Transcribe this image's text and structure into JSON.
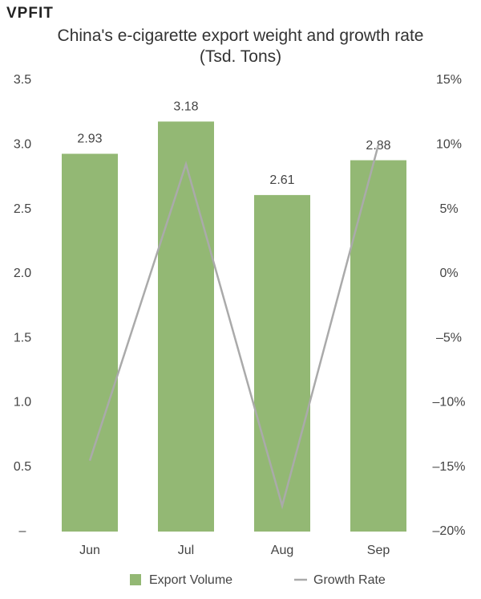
{
  "logo": "VPFIT",
  "chart_data": {
    "type": "bar-line",
    "title": "China's e-cigarette export weight and growth rate (Tsd. Tons)",
    "categories": [
      "Jun",
      "Jul",
      "Aug",
      "Sep"
    ],
    "series": [
      {
        "name": "Export Volume",
        "type": "bar",
        "color": "#93b874",
        "values": [
          2.93,
          3.18,
          2.61,
          2.88
        ]
      },
      {
        "name": "Growth Rate",
        "type": "line",
        "axis": "y2",
        "color": "#aaaaaa",
        "values": [
          -14.5,
          8.5,
          -18,
          10
        ]
      }
    ],
    "ylim": [
      0,
      3.5
    ],
    "yticks": [
      {
        "value": 0,
        "label": "–"
      },
      0.5,
      {
        "value": 1,
        "label": "1.0"
      },
      1.5,
      {
        "value": 2,
        "label": "2.0"
      },
      2.5,
      {
        "value": 3,
        "label": "3.0"
      },
      3.5
    ],
    "y2lim": [
      -20,
      15
    ],
    "y2ticks": [
      {
        "value": -20,
        "label": "–20%"
      },
      {
        "value": -15,
        "label": "–15%"
      },
      {
        "value": -10,
        "label": "–10%"
      },
      {
        "value": -5,
        "label": "–5%"
      },
      {
        "value": 0,
        "label": "0%"
      },
      {
        "value": 5,
        "label": "5%"
      },
      {
        "value": 10,
        "label": "10%"
      },
      {
        "value": 15,
        "label": "15%"
      }
    ],
    "grid": false,
    "legend": "bottom"
  }
}
